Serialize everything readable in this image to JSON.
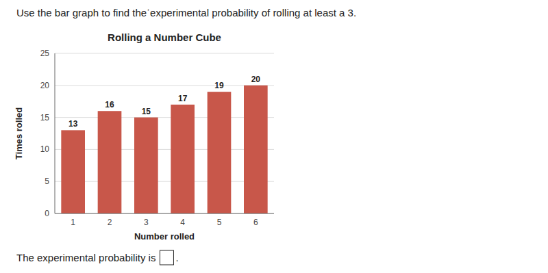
{
  "chart_data": {
    "type": "bar",
    "title": "Rolling a Number Cube",
    "xlabel": "Number rolled",
    "ylabel": "Times rolled",
    "categories": [
      1,
      2,
      3,
      4,
      5,
      6
    ],
    "values": [
      13,
      16,
      15,
      17,
      19,
      20
    ],
    "color": "#c8574a",
    "ylim": [
      0,
      25
    ],
    "yticks": [
      0,
      5,
      10,
      15,
      20,
      25
    ],
    "grid": true,
    "data_labels": true,
    "annotations": [
      "Use the bar graph to find theʾexperimental probability of rolling at least a 3.",
      "The experimental probability is",
      "."
    ]
  }
}
